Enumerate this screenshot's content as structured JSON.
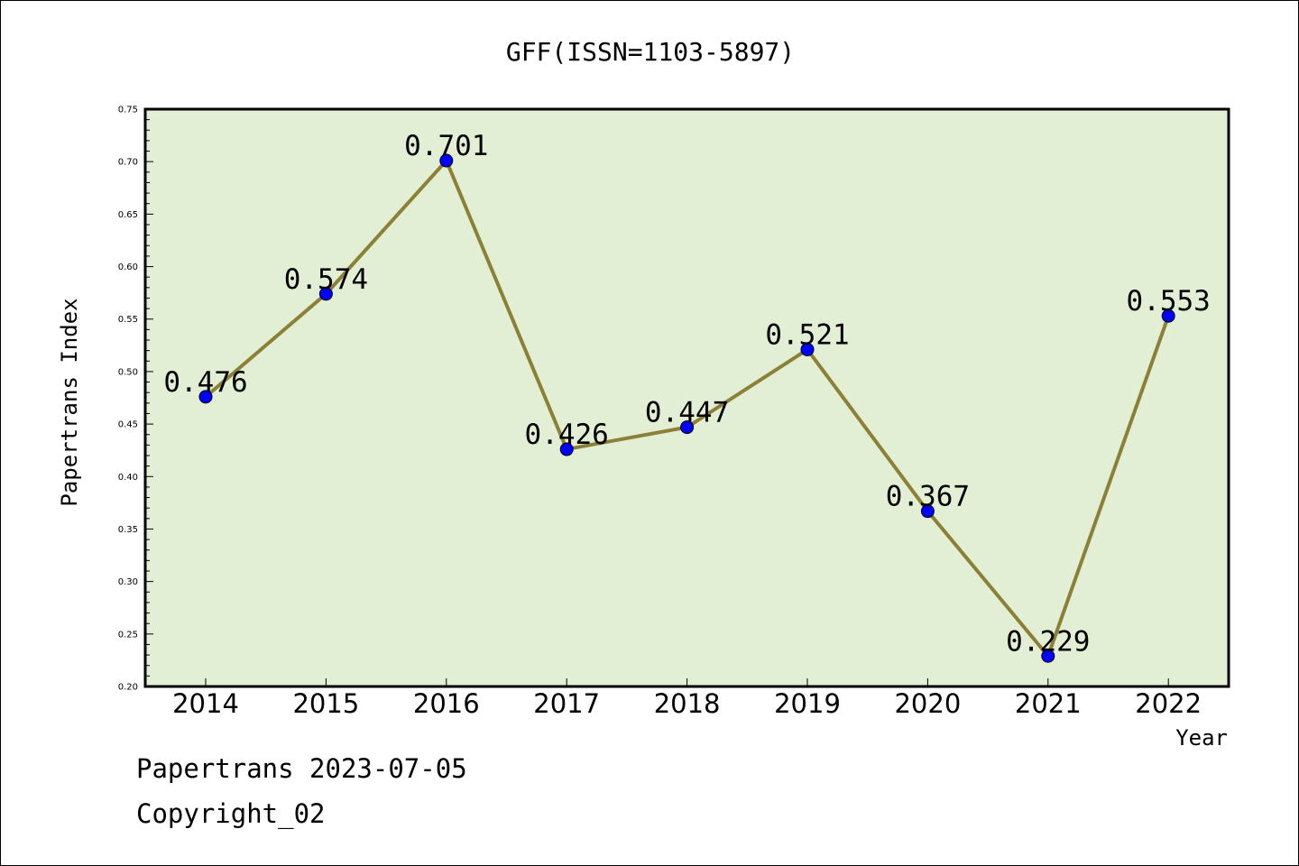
{
  "chart_data": {
    "type": "line",
    "title": "GFF(ISSN=1103-5897)",
    "xlabel": "Year",
    "ylabel": "Papertrans Index",
    "categories": [
      "2014",
      "2015",
      "2016",
      "2017",
      "2018",
      "2019",
      "2020",
      "2021",
      "2022"
    ],
    "series": [
      {
        "values": [
          0.476,
          0.574,
          0.701,
          0.426,
          0.447,
          0.521,
          0.367,
          0.229,
          0.553
        ],
        "labels": [
          "0.476",
          "0.574",
          "0.701",
          "0.426",
          "0.447",
          "0.521",
          "0.367",
          "0.229",
          "0.553"
        ]
      }
    ],
    "ylim": [
      0.2,
      0.75
    ],
    "yticks": [
      "0.20",
      "0.25",
      "0.30",
      "0.35",
      "0.40",
      "0.45",
      "0.50",
      "0.55",
      "0.60",
      "0.65",
      "0.70",
      "0.75"
    ],
    "grid": false,
    "legend": "none",
    "colors": {
      "plot_background": "#e2efd4",
      "line": "#8b8036",
      "marker": "#0000ff"
    }
  },
  "footer": {
    "date_text": "Papertrans 2023-07-05",
    "copyright_text": "Copyright_02"
  }
}
